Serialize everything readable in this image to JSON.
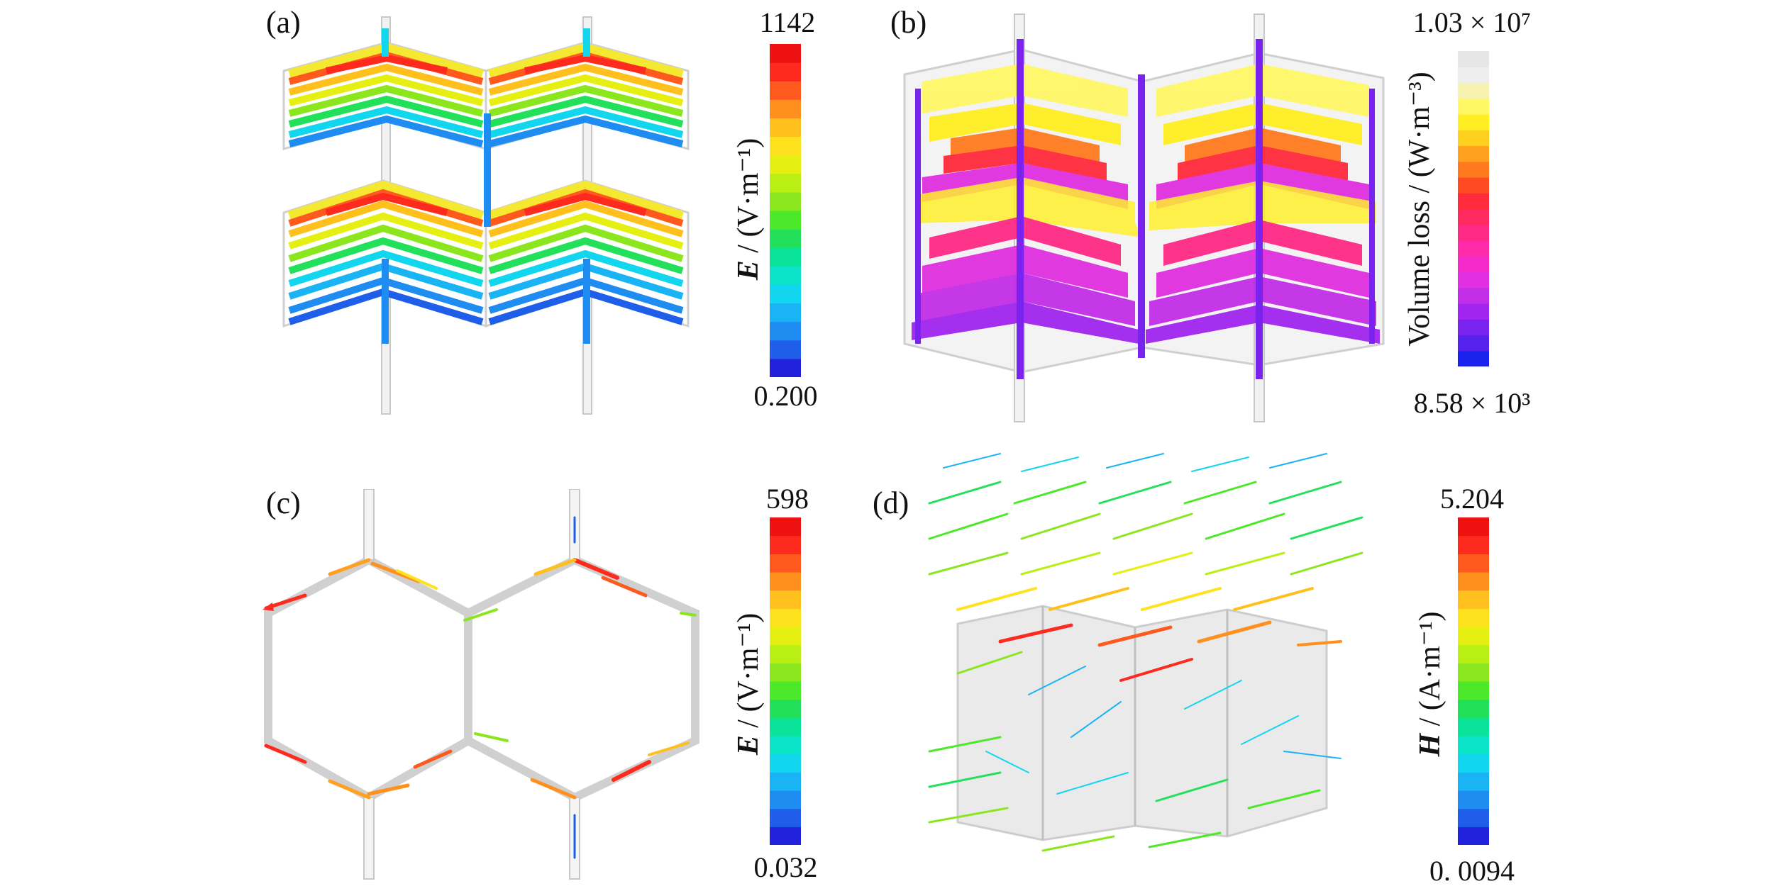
{
  "panels": [
    {
      "label": "(a)",
      "colorbar": {
        "max": "1142",
        "min": "0.200",
        "quantity": "E",
        "unit": " / (V·m⁻¹)",
        "colors": [
          "#2222dd",
          "#1e5ee8",
          "#1e8cf0",
          "#1ab4f5",
          "#12d6ee",
          "#0ae3c8",
          "#0ae39a",
          "#22e05a",
          "#4ce82a",
          "#8ce61e",
          "#b9ef14",
          "#e5f012",
          "#ffe21e",
          "#ffc01e",
          "#ff901e",
          "#ff5a1e",
          "#ff2a1e",
          "#ee1111"
        ]
      }
    },
    {
      "label": "(b)",
      "colorbar": {
        "max": "1.03 × 10⁷",
        "min": "8.58 × 10³",
        "quantity": "",
        "unit": "Volume loss / (W·m⁻³)",
        "colors": [
          "#1a22ee",
          "#5522ee",
          "#7a22ee",
          "#a025ee",
          "#c22ee8",
          "#e030e0",
          "#f52ac8",
          "#ff2aa8",
          "#ff2a86",
          "#ff2a60",
          "#ff2a3c",
          "#ff4a22",
          "#ff7a1e",
          "#ffa01e",
          "#ffd01e",
          "#ffee22",
          "#fff866",
          "#f6f2b0",
          "#eeeeee",
          "#e6e6e6"
        ]
      }
    },
    {
      "label": "(c)",
      "colorbar": {
        "max": "598",
        "min": "0.032",
        "quantity": "E",
        "unit": " / (V·m⁻¹)",
        "colors": [
          "#2222dd",
          "#1e5ee8",
          "#1e8cf0",
          "#1ab4f5",
          "#12d6ee",
          "#0ae3c8",
          "#0ae39a",
          "#22e05a",
          "#4ce82a",
          "#8ce61e",
          "#b9ef14",
          "#e5f012",
          "#ffe21e",
          "#ffc01e",
          "#ff901e",
          "#ff5a1e",
          "#ff2a1e",
          "#ee1111"
        ]
      }
    },
    {
      "label": "(d)",
      "colorbar": {
        "max": "5.204",
        "min": "0. 0094",
        "quantity": "H",
        "unit": " / (A·m⁻¹)",
        "colors": [
          "#2222dd",
          "#1e5ee8",
          "#1e8cf0",
          "#1ab4f5",
          "#12d6ee",
          "#0ae3c8",
          "#0ae39a",
          "#22e05a",
          "#4ce82a",
          "#8ce61e",
          "#b9ef14",
          "#e5f012",
          "#ffe21e",
          "#ffc01e",
          "#ff901e",
          "#ff5a1e",
          "#ff2a1e",
          "#ee1111"
        ]
      }
    }
  ]
}
